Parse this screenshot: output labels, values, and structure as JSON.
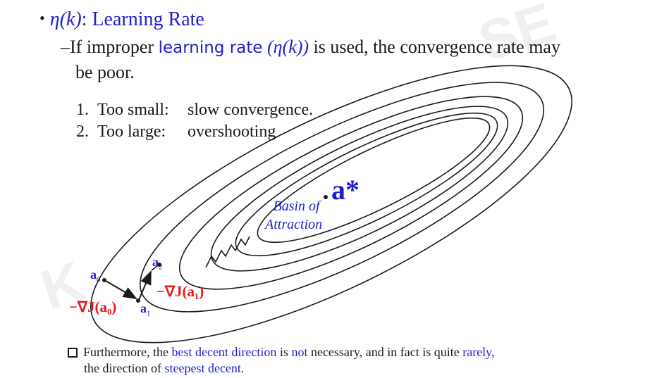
{
  "bullet_title": {
    "symbol": "η(k)",
    "text": ": Learning Rate"
  },
  "intro": {
    "dash": "–",
    "before": "If improper ",
    "highlight": "learning rate",
    "paren": "(η(k))",
    "after": " is used, the convergence rate may",
    "line2": "be poor."
  },
  "list": [
    {
      "num": "1.",
      "label": "Too small:",
      "value": "slow convergence."
    },
    {
      "num": "2.",
      "label": "Too large:",
      "value": "overshooting"
    }
  ],
  "diagram": {
    "optimum": "a*",
    "basin": [
      "Basin of",
      "Attraction"
    ],
    "a0": "a",
    "a0_sub": "0",
    "a1": "a",
    "a1_sub": "1",
    "a2": "a",
    "a2_sub": "2",
    "grad0": "−∇J(a₀)",
    "grad1": "−∇J(a₁)"
  },
  "footer": {
    "p1": "Furthermore, the ",
    "p2": "best decent direction",
    "p3": " is ",
    "p4": "not",
    "p5": " necessary, and in fact is quite ",
    "p6": "rarely",
    "p7": ",",
    "l2a": "the direction of ",
    "l2b": "steepest decent",
    "l2c": "."
  },
  "colors": {
    "blue": "#1f1fd0",
    "red": "#e21a1a",
    "text": "#1a1a1a"
  }
}
